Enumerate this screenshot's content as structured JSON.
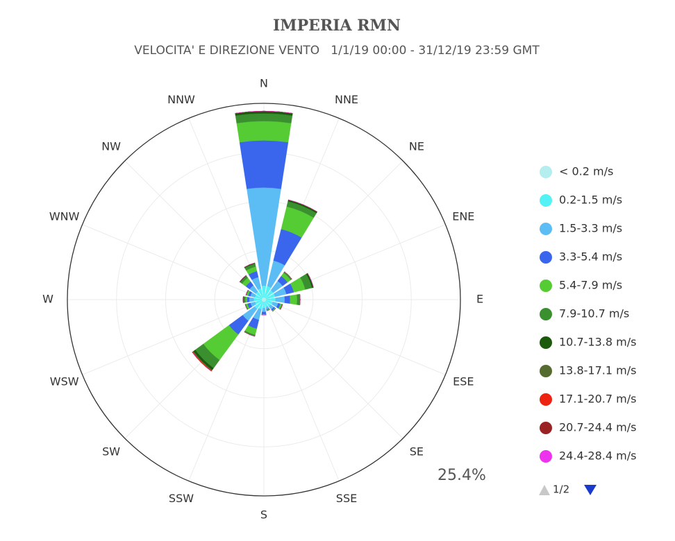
{
  "chart_data": {
    "type": "windrose",
    "title": "IMPERIA RMN",
    "subtitle": "VELOCITA' E DIREZIONE VENTO   1/1/19 00:00 - 31/12/19 23:59 GMT",
    "categories": [
      "N",
      "NNE",
      "NE",
      "ENE",
      "E",
      "ESE",
      "SE",
      "SSE",
      "S",
      "SSW",
      "SW",
      "WSW",
      "W",
      "WNW",
      "NW",
      "NNW"
    ],
    "ylim": [
      0,
      25.4
    ],
    "yticks": [
      {
        "value": 25.4,
        "label": "25.4%"
      }
    ],
    "legend_page": "1/2",
    "series": [
      {
        "name": "< 0.2 m/s",
        "color": "#b5eeee",
        "values": [
          0.3,
          0.3,
          0.3,
          0.3,
          0.3,
          0.3,
          0.3,
          0.3,
          0.3,
          0.3,
          0.3,
          0.3,
          0.3,
          0.3,
          0.3,
          0.3
        ]
      },
      {
        "name": "0.2-1.5 m/s",
        "color": "#55f2f5",
        "values": [
          1.5,
          1.5,
          1.2,
          1.2,
          1.2,
          0.9,
          0.8,
          0.7,
          0.8,
          1.0,
          1.2,
          0.9,
          1.0,
          0.9,
          1.0,
          1.2
        ]
      },
      {
        "name": "1.5-3.3 m/s",
        "color": "#5cbdf5",
        "values": [
          12.7,
          3.4,
          1.5,
          1.5,
          1.2,
          0.7,
          0.5,
          0.3,
          0.5,
          1.4,
          1.9,
          0.6,
          0.6,
          0.6,
          1.0,
          1.5
        ]
      },
      {
        "name": "3.3-5.4 m/s",
        "color": "#3a66ee",
        "values": [
          6.1,
          4.2,
          0.8,
          1.0,
          0.7,
          0.3,
          0.2,
          0.1,
          0.3,
          1.2,
          2.2,
          0.4,
          0.3,
          0.3,
          0.6,
          0.8
        ]
      },
      {
        "name": "5.4-7.9 m/s",
        "color": "#55cc33",
        "values": [
          2.5,
          3.0,
          0.5,
          1.5,
          0.9,
          0.2,
          0.1,
          0.1,
          0.1,
          0.8,
          4.1,
          0.2,
          0.2,
          0.2,
          0.6,
          0.6
        ]
      },
      {
        "name": "7.9-10.7 m/s",
        "color": "#3a8f2e",
        "values": [
          1.0,
          0.7,
          0.2,
          0.9,
          0.4,
          0.1,
          0,
          0,
          0,
          0.2,
          1.3,
          0.1,
          0.2,
          0.1,
          0.3,
          0.4
        ]
      },
      {
        "name": "10.7-13.8 m/s",
        "color": "#1b5a0c",
        "values": [
          0.3,
          0.2,
          0,
          0.2,
          0,
          0,
          0,
          0,
          0,
          0,
          0.3,
          0,
          0.1,
          0,
          0.1,
          0.1
        ]
      },
      {
        "name": "13.8-17.1 m/s",
        "color": "#566b30",
        "values": [
          0,
          0,
          0,
          0,
          0,
          0,
          0,
          0,
          0,
          0,
          0.1,
          0,
          0,
          0,
          0,
          0
        ]
      },
      {
        "name": "17.1-20.7 m/s",
        "color": "#ee2211",
        "values": [
          0,
          0,
          0,
          0,
          0,
          0,
          0,
          0,
          0,
          0,
          0.1,
          0,
          0,
          0,
          0,
          0
        ]
      },
      {
        "name": "20.7-24.4 m/s",
        "color": "#9a2222",
        "values": [
          0,
          0,
          0,
          0,
          0,
          0,
          0,
          0,
          0,
          0,
          0,
          0,
          0,
          0,
          0,
          0
        ]
      },
      {
        "name": "24.4-28.4 m/s",
        "color": "#ee33ee",
        "values": [
          0,
          0,
          0,
          0,
          0,
          0,
          0,
          0,
          0,
          0,
          0,
          0,
          0,
          0,
          0,
          0
        ]
      }
    ]
  }
}
